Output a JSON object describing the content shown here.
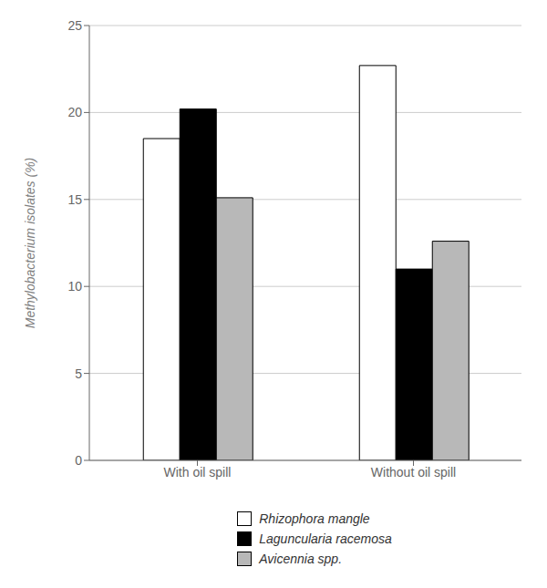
{
  "chart_data": {
    "type": "bar",
    "categories": [
      "With oil spill",
      "Without oil spill"
    ],
    "series": [
      {
        "name": "Rhizophora mangle",
        "color": "#ffffff",
        "values": [
          18.5,
          22.7
        ]
      },
      {
        "name": "Laguncularia racemosa",
        "color": "#000000",
        "values": [
          20.2,
          11.0
        ]
      },
      {
        "name": "Avicennia spp.",
        "color": "#b8b8b8",
        "values": [
          15.1,
          12.6
        ]
      }
    ],
    "y_label": "Methylobacterium isolates (%)",
    "ylim": [
      0,
      25
    ],
    "yticks": [
      0,
      5,
      10,
      15,
      20,
      25
    ],
    "grid": true,
    "legend": "bottom"
  }
}
